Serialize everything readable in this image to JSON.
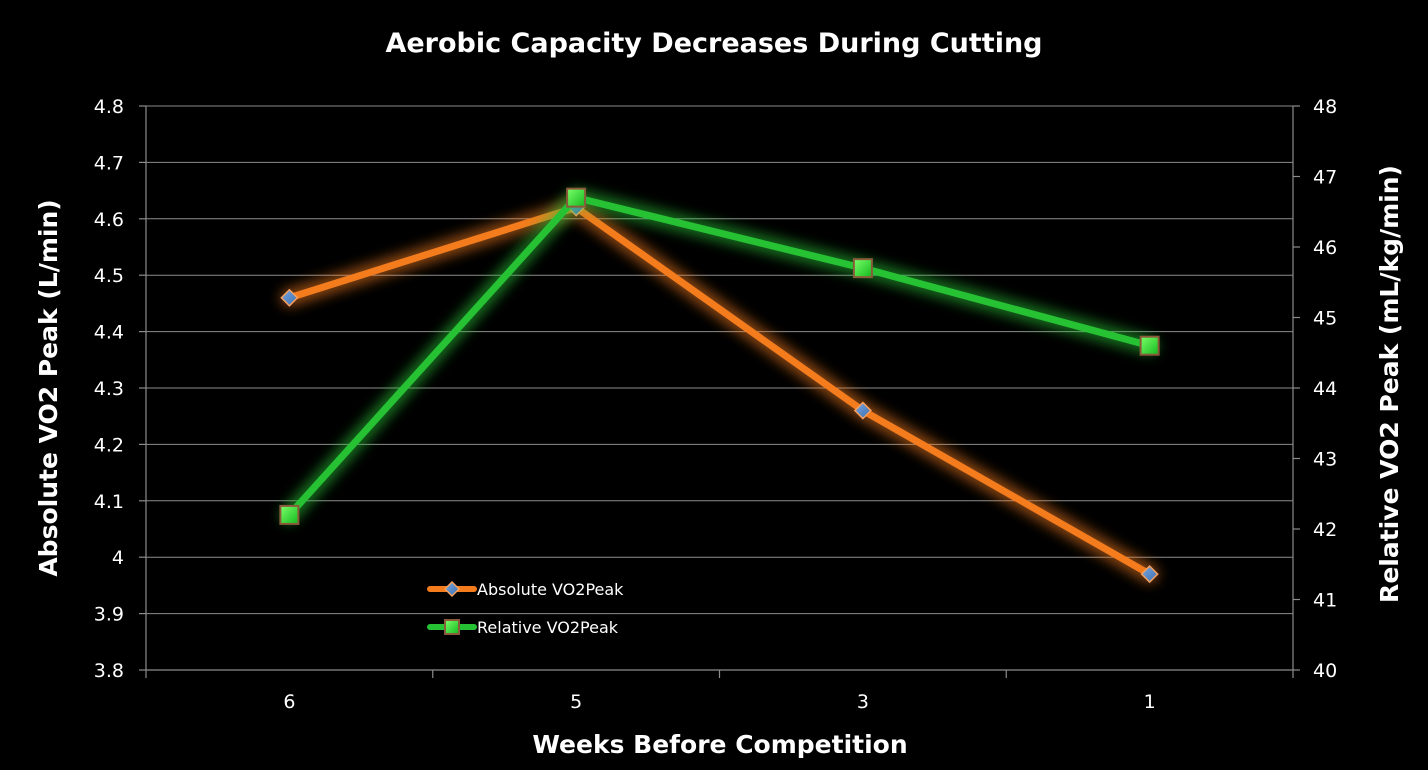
{
  "chart_data": {
    "type": "line",
    "title": "Aerobic Capacity Decreases During Cutting",
    "xlabel": "Weeks Before Competition",
    "ylabel": "Absolute VO2 Peak (L/min)",
    "y2label": "Relative VO2 Peak (mL/kg/min)",
    "categories": [
      "6",
      "5",
      "3",
      "1"
    ],
    "ylim": [
      3.8,
      4.8
    ],
    "y_ticks": [
      "3.8",
      "3.9",
      "4",
      "4.1",
      "4.2",
      "4.3",
      "4.4",
      "4.5",
      "4.6",
      "4.7",
      "4.8"
    ],
    "y2lim": [
      40,
      48
    ],
    "y2_ticks": [
      "40",
      "41",
      "42",
      "43",
      "44",
      "45",
      "46",
      "47",
      "48"
    ],
    "grid": true,
    "legend_position": "bottom-left (inside plot)",
    "series": [
      {
        "name": "Absolute VO2Peak",
        "axis": "left",
        "values": [
          4.46,
          4.62,
          4.26,
          3.97
        ],
        "color": "#f47c1c",
        "marker": "diamond"
      },
      {
        "name": "Relative VO2Peak",
        "axis": "right",
        "values": [
          42.2,
          46.7,
          45.7,
          44.6
        ],
        "color": "#27c234",
        "marker": "square"
      }
    ]
  }
}
